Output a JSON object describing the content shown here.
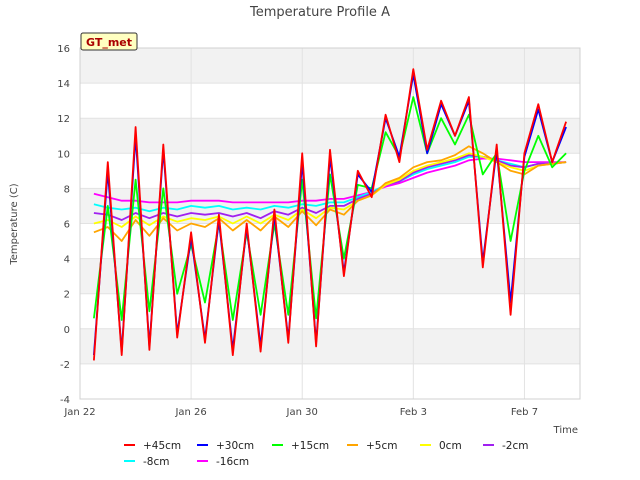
{
  "chart_data": {
    "type": "line",
    "title": "Temperature Profile A",
    "xlabel": "Time",
    "ylabel": "Temperature (C)",
    "ylim": [
      -4,
      16
    ],
    "yticks": [
      -4,
      -2,
      0,
      2,
      4,
      6,
      8,
      10,
      12,
      14,
      16
    ],
    "xlim": [
      "2024-01-22",
      "2024-02-09"
    ],
    "xticks": [
      {
        "value": "2024-01-22",
        "label": "Jan 22"
      },
      {
        "value": "2024-01-26",
        "label": "Jan 26"
      },
      {
        "value": "2024-01-30",
        "label": "Jan 30"
      },
      {
        "value": "2024-02-03",
        "label": "Feb 3"
      },
      {
        "value": "2024-02-07",
        "label": "Feb 7"
      }
    ],
    "grid": true,
    "banded_background": true,
    "legend_position": "bottom",
    "badge": "GT_met",
    "x": [
      "2024-01-22T12:00",
      "2024-01-23T00:00",
      "2024-01-23T12:00",
      "2024-01-24T00:00",
      "2024-01-24T12:00",
      "2024-01-25T00:00",
      "2024-01-25T12:00",
      "2024-01-26T00:00",
      "2024-01-26T12:00",
      "2024-01-27T00:00",
      "2024-01-27T12:00",
      "2024-01-28T00:00",
      "2024-01-28T12:00",
      "2024-01-29T00:00",
      "2024-01-29T12:00",
      "2024-01-30T00:00",
      "2024-01-30T12:00",
      "2024-01-31T00:00",
      "2024-01-31T12:00",
      "2024-02-01T00:00",
      "2024-02-01T12:00",
      "2024-02-02T00:00",
      "2024-02-02T12:00",
      "2024-02-03T00:00",
      "2024-02-03T12:00",
      "2024-02-04T00:00",
      "2024-02-04T12:00",
      "2024-02-05T00:00",
      "2024-02-05T12:00",
      "2024-02-06T00:00",
      "2024-02-06T12:00",
      "2024-02-07T00:00",
      "2024-02-07T12:00",
      "2024-02-08T00:00",
      "2024-02-08T12:00"
    ],
    "series": [
      {
        "name": "+45cm",
        "color": "#ff0000",
        "values": [
          -1.8,
          9.5,
          -1.5,
          11.5,
          -1.2,
          10.5,
          -0.5,
          5.5,
          -0.8,
          6.5,
          -1.5,
          6.0,
          -1.3,
          6.8,
          -0.8,
          10.0,
          -1.0,
          10.2,
          3.0,
          9.0,
          7.5,
          12.2,
          9.5,
          14.8,
          10.2,
          13.0,
          11.0,
          13.2,
          3.5,
          10.5,
          0.8,
          10.0,
          12.8,
          9.5,
          11.8
        ]
      },
      {
        "name": "+30cm",
        "color": "#0000ff",
        "values": [
          -1.5,
          9.0,
          -1.3,
          11.0,
          -1.0,
          10.2,
          -0.3,
          5.2,
          -0.6,
          6.2,
          -1.2,
          5.8,
          -1.0,
          6.5,
          -0.6,
          9.5,
          -0.8,
          9.8,
          3.2,
          8.8,
          7.8,
          12.0,
          9.8,
          14.5,
          10.0,
          12.8,
          11.0,
          13.0,
          3.8,
          10.2,
          1.5,
          9.8,
          12.5,
          9.5,
          11.5
        ]
      },
      {
        "name": "+15cm",
        "color": "#00ff00",
        "values": [
          0.6,
          7.0,
          0.5,
          8.5,
          1.0,
          8.0,
          2.0,
          4.8,
          1.5,
          6.0,
          0.5,
          5.5,
          0.8,
          6.0,
          0.8,
          8.5,
          0.6,
          8.8,
          4.0,
          8.2,
          8.0,
          11.2,
          9.8,
          13.2,
          10.0,
          12.0,
          10.5,
          12.2,
          8.8,
          10.0,
          5.0,
          9.0,
          11.0,
          9.2,
          10.0
        ]
      },
      {
        "name": "+5cm",
        "color": "#ffa500",
        "values": [
          5.5,
          5.8,
          5.0,
          6.2,
          5.3,
          6.3,
          5.6,
          6.0,
          5.8,
          6.3,
          5.6,
          6.2,
          5.6,
          6.4,
          5.8,
          6.7,
          5.9,
          6.8,
          6.5,
          7.3,
          7.6,
          8.3,
          8.6,
          9.2,
          9.5,
          9.6,
          9.9,
          10.4,
          10.0,
          9.5,
          9.0,
          8.8,
          9.3,
          9.4,
          9.5
        ]
      },
      {
        "name": "0cm",
        "color": "#ffff00",
        "values": [
          6.0,
          6.2,
          5.8,
          6.4,
          5.9,
          6.4,
          6.1,
          6.3,
          6.2,
          6.4,
          6.0,
          6.4,
          6.0,
          6.5,
          6.2,
          6.8,
          6.3,
          6.9,
          6.8,
          7.3,
          7.6,
          8.2,
          8.5,
          9.0,
          9.3,
          9.5,
          9.7,
          10.0,
          9.8,
          9.5,
          9.2,
          9.0,
          9.3,
          9.4,
          9.5
        ]
      },
      {
        "name": "-2cm",
        "color": "#a020f0",
        "values": [
          6.6,
          6.5,
          6.2,
          6.6,
          6.3,
          6.6,
          6.4,
          6.6,
          6.5,
          6.6,
          6.4,
          6.6,
          6.3,
          6.7,
          6.5,
          6.9,
          6.6,
          7.0,
          7.0,
          7.4,
          7.7,
          8.2,
          8.4,
          8.9,
          9.2,
          9.4,
          9.6,
          9.9,
          9.8,
          9.6,
          9.3,
          9.2,
          9.4,
          9.4,
          9.5
        ]
      },
      {
        "name": "-8cm",
        "color": "#00ffff",
        "values": [
          7.1,
          6.9,
          6.8,
          6.9,
          6.7,
          6.9,
          6.8,
          7.0,
          6.9,
          7.0,
          6.8,
          6.9,
          6.8,
          7.0,
          6.9,
          7.1,
          7.0,
          7.2,
          7.2,
          7.5,
          7.8,
          8.2,
          8.4,
          8.8,
          9.1,
          9.3,
          9.5,
          9.8,
          9.8,
          9.6,
          9.4,
          9.2,
          9.4,
          9.4,
          9.5
        ]
      },
      {
        "name": "-16cm",
        "color": "#ff00ff",
        "values": [
          7.7,
          7.5,
          7.3,
          7.3,
          7.2,
          7.2,
          7.2,
          7.3,
          7.3,
          7.3,
          7.2,
          7.2,
          7.2,
          7.2,
          7.2,
          7.3,
          7.3,
          7.4,
          7.4,
          7.6,
          7.8,
          8.1,
          8.3,
          8.6,
          8.9,
          9.1,
          9.3,
          9.6,
          9.7,
          9.7,
          9.6,
          9.5,
          9.5,
          9.5,
          9.5
        ]
      }
    ]
  }
}
